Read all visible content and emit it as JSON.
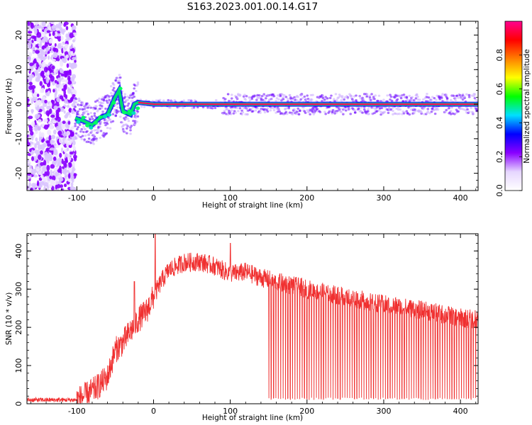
{
  "figure": {
    "title": "S163.2023.001.00.14.G17"
  },
  "chart_data": [
    {
      "type": "heatmap",
      "xlabel": "Height of straight line (km)",
      "ylabel": "Frequency (Hz)",
      "xlim": [
        -165,
        423
      ],
      "ylim": [
        -25,
        24
      ],
      "xticks": [
        -100,
        0,
        100,
        200,
        300,
        400
      ],
      "yticks": [
        -20,
        -10,
        0,
        10,
        20
      ],
      "grid": false,
      "colorbar": {
        "label": "Normalized spectral amplitude",
        "range": [
          0.0,
          1.0
        ],
        "ticks": [
          "0.0",
          "0.2",
          "0.4",
          "0.6",
          "0.8"
        ],
        "colors": [
          "#ffffff",
          "#e6d6ff",
          "#8a00ff",
          "#0000ff",
          "#00e0ff",
          "#00ff00",
          "#ffff00",
          "#ff8000",
          "#ff0000",
          "#ff0090"
        ]
      },
      "ridge": [
        {
          "x": -102,
          "y": -4
        },
        {
          "x": -90,
          "y": -5
        },
        {
          "x": -80,
          "y": -6
        },
        {
          "x": -70,
          "y": -4
        },
        {
          "x": -60,
          "y": -3
        },
        {
          "x": -50,
          "y": 2
        },
        {
          "x": -45,
          "y": 4
        },
        {
          "x": -40,
          "y": -2
        },
        {
          "x": -30,
          "y": -3
        },
        {
          "x": -25,
          "y": 0
        },
        {
          "x": -20,
          "y": 0.5
        },
        {
          "x": 0,
          "y": 0
        },
        {
          "x": 90,
          "y": 0
        },
        {
          "x": 423,
          "y": 0
        }
      ]
    },
    {
      "type": "line",
      "xlabel": "Height of straight line (km)",
      "ylabel": "SNR (10 * v/v)",
      "xlim": [
        -165,
        423
      ],
      "ylim": [
        0,
        445
      ],
      "xticks": [
        -100,
        0,
        100,
        200,
        300,
        400
      ],
      "yticks": [
        0,
        100,
        200,
        300,
        400
      ],
      "grid": false,
      "series": [
        {
          "color": "#f03030",
          "envelope": [
            {
              "x": -165,
              "y": 10
            },
            {
              "x": -100,
              "y": 10
            },
            {
              "x": -90,
              "y": 20
            },
            {
              "x": -75,
              "y": 40
            },
            {
              "x": -60,
              "y": 70
            },
            {
              "x": -50,
              "y": 140
            },
            {
              "x": -40,
              "y": 160
            },
            {
              "x": -30,
              "y": 190
            },
            {
              "x": -20,
              "y": 220
            },
            {
              "x": -10,
              "y": 240
            },
            {
              "x": 0,
              "y": 280
            },
            {
              "x": 10,
              "y": 320
            },
            {
              "x": 20,
              "y": 350
            },
            {
              "x": 40,
              "y": 370
            },
            {
              "x": 60,
              "y": 372
            },
            {
              "x": 80,
              "y": 360
            },
            {
              "x": 100,
              "y": 340
            },
            {
              "x": 120,
              "y": 345
            },
            {
              "x": 140,
              "y": 330
            },
            {
              "x": 160,
              "y": 320
            },
            {
              "x": 200,
              "y": 300
            },
            {
              "x": 250,
              "y": 280
            },
            {
              "x": 300,
              "y": 260
            },
            {
              "x": 350,
              "y": 245
            },
            {
              "x": 400,
              "y": 225
            },
            {
              "x": 423,
              "y": 220
            }
          ],
          "peaks": [
            {
              "x": 2,
              "y": 445
            },
            {
              "x": -25,
              "y": 320
            },
            {
              "x": 100,
              "y": 420
            }
          ],
          "dropout_start_x": 150,
          "dropout_floor": 10
        }
      ]
    }
  ]
}
